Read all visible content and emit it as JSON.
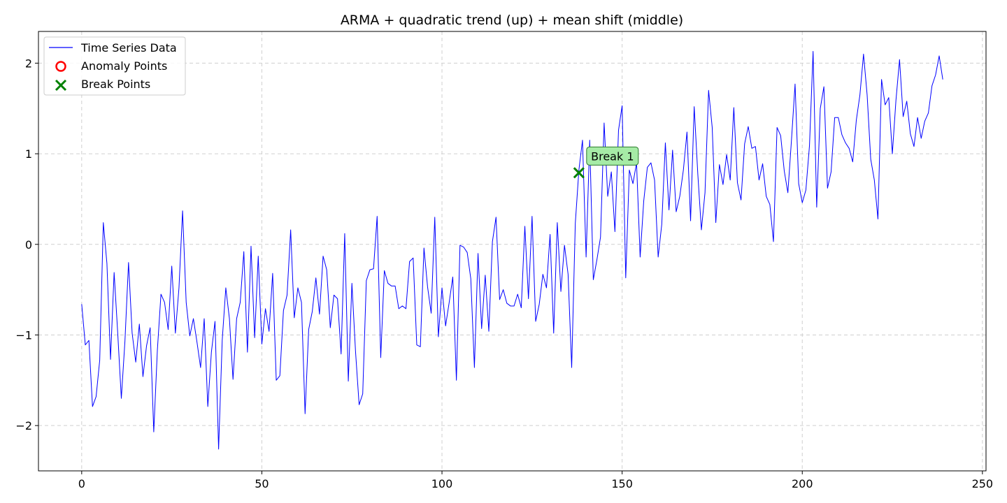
{
  "chart_data": {
    "type": "line",
    "title": "ARMA + quadratic trend (up) + mean shift (middle)",
    "xlabel": "",
    "ylabel": "",
    "xlim": [
      -12,
      251
    ],
    "ylim": [
      -2.5,
      2.35
    ],
    "xticks": [
      0,
      50,
      100,
      150,
      200,
      250
    ],
    "yticks": [
      -2,
      -1,
      0,
      1,
      2
    ],
    "xtick_labels": [
      "0",
      "50",
      "100",
      "150",
      "200",
      "250"
    ],
    "ytick_labels": [
      "−2",
      "−1",
      "0",
      "1",
      "2"
    ],
    "grid": true,
    "legend_position": "upper left",
    "legend": [
      "Time Series Data",
      "Anomaly Points",
      "Break Points"
    ],
    "colors": {
      "line": "#0000ff",
      "anomaly": "#ff0000",
      "break": "#008000",
      "annotation_bg": "#a6eba6"
    },
    "series": [
      {
        "name": "Time Series Data",
        "x_start": 0,
        "values": [
          -0.66,
          -1.11,
          -1.06,
          -1.79,
          -1.68,
          -1.28,
          0.24,
          -0.21,
          -1.27,
          -0.31,
          -0.98,
          -1.7,
          -1.07,
          -0.2,
          -0.98,
          -1.3,
          -0.88,
          -1.46,
          -1.12,
          -0.92,
          -2.07,
          -1.17,
          -0.55,
          -0.64,
          -0.94,
          -0.24,
          -0.98,
          -0.48,
          0.37,
          -0.64,
          -1.01,
          -0.82,
          -1.08,
          -1.36,
          -0.82,
          -1.79,
          -1.19,
          -0.85,
          -2.26,
          -1.06,
          -0.48,
          -0.82,
          -1.49,
          -0.82,
          -0.64,
          -0.08,
          -1.19,
          -0.02,
          -1.03,
          -0.13,
          -1.1,
          -0.71,
          -0.96,
          -0.32,
          -1.5,
          -1.45,
          -0.73,
          -0.56,
          0.16,
          -0.81,
          -0.48,
          -0.64,
          -1.87,
          -0.94,
          -0.74,
          -0.37,
          -0.77,
          -0.13,
          -0.28,
          -0.92,
          -0.56,
          -0.6,
          -1.21,
          0.12,
          -1.51,
          -0.43,
          -1.18,
          -1.77,
          -1.65,
          -0.4,
          -0.28,
          -0.27,
          0.31,
          -1.25,
          -0.29,
          -0.43,
          -0.46,
          -0.46,
          -0.71,
          -0.68,
          -0.71,
          -0.19,
          -0.15,
          -1.11,
          -1.13,
          -0.04,
          -0.47,
          -0.76,
          0.3,
          -1.02,
          -0.48,
          -0.9,
          -0.64,
          -0.36,
          -1.5,
          -0.01,
          -0.03,
          -0.09,
          -0.38,
          -1.36,
          -0.1,
          -0.93,
          -0.34,
          -0.96,
          0.03,
          0.3,
          -0.61,
          -0.5,
          -0.65,
          -0.68,
          -0.68,
          -0.55,
          -0.7,
          0.2,
          -0.6,
          0.31,
          -0.85,
          -0.66,
          -0.33,
          -0.48,
          0.11,
          -0.98,
          0.24,
          -0.52,
          -0.01,
          -0.33,
          -1.36,
          0.23,
          0.82,
          1.15,
          -0.14,
          1.15,
          -0.39,
          -0.17,
          0.08,
          1.34,
          0.53,
          0.8,
          0.14,
          1.26,
          1.53,
          -0.37,
          0.82,
          0.67,
          0.9,
          -0.14,
          0.48,
          0.85,
          0.9,
          0.71,
          -0.14,
          0.22,
          1.12,
          0.38,
          1.04,
          0.36,
          0.53,
          0.82,
          1.24,
          0.26,
          1.52,
          0.78,
          0.16,
          0.57,
          1.7,
          1.29,
          0.24,
          0.88,
          0.66,
          0.99,
          0.71,
          1.51,
          0.68,
          0.49,
          1.11,
          1.3,
          1.06,
          1.08,
          0.71,
          0.89,
          0.53,
          0.44,
          0.03,
          1.29,
          1.2,
          0.81,
          0.57,
          1.15,
          1.77,
          0.67,
          0.46,
          0.6,
          1.09,
          2.13,
          0.41,
          1.5,
          1.74,
          0.62,
          0.8,
          1.4,
          1.4,
          1.21,
          1.12,
          1.06,
          0.91,
          1.37,
          1.65,
          2.1,
          1.65,
          0.94,
          0.71,
          0.28,
          1.82,
          1.54,
          1.62,
          1.0,
          1.59,
          2.04,
          1.41,
          1.58,
          1.22,
          1.08,
          1.4,
          1.17,
          1.36,
          1.45,
          1.75,
          1.87,
          2.08,
          1.82
        ]
      }
    ],
    "anomaly_points": [],
    "break_points": [
      {
        "x": 138,
        "y": 0.79,
        "label": "Break 1"
      }
    ]
  }
}
